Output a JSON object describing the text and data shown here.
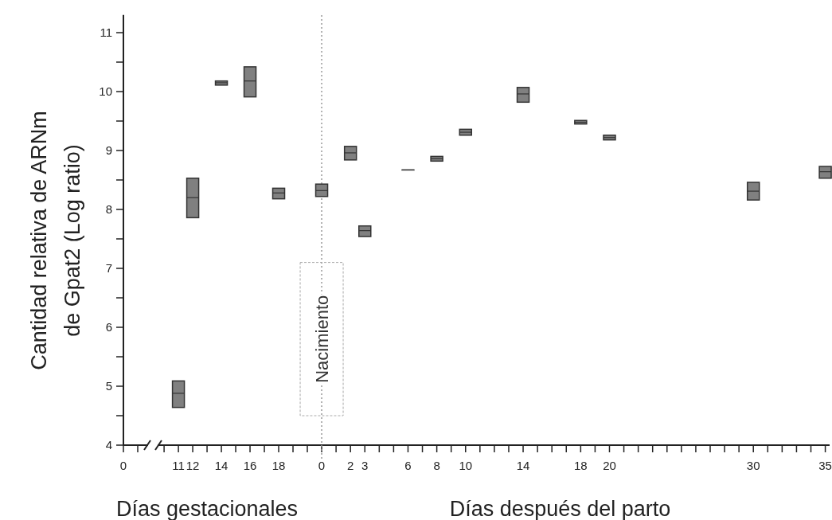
{
  "chart_data": [
    {
      "type": "box",
      "ylabel": "Cantidad relativa de ARNm de Gpat2 (Log ratio)",
      "annotations": [
        "0",
        "Días gestacionales"
      ],
      "color": "#808080",
      "x": [
        11,
        12,
        14,
        16,
        18
      ],
      "boxes": [
        {
          "low": 4.64,
          "q1": 4.64,
          "median": 4.88,
          "q3": 5.09,
          "high": 5.09
        },
        {
          "low": 7.86,
          "q1": 7.86,
          "median": 8.2,
          "q3": 8.53,
          "high": 8.53
        },
        {
          "low": 10.11,
          "q1": 10.11,
          "median": 10.15,
          "q3": 10.18,
          "high": 10.18
        },
        {
          "low": 9.91,
          "q1": 9.91,
          "median": 10.18,
          "q3": 10.42,
          "high": 10.42
        },
        {
          "low": 8.18,
          "q1": 8.18,
          "median": 8.28,
          "q3": 8.36,
          "high": 8.36
        }
      ],
      "xlim": [
        9.55,
        20.5
      ],
      "xticks": [
        {
          "value": 10,
          "label": null
        },
        11,
        12,
        {
          "value": 13,
          "label": null
        },
        14,
        {
          "value": 15,
          "label": null
        },
        16,
        {
          "value": 17,
          "label": null
        },
        18,
        {
          "value": 19,
          "label": null
        },
        {
          "value": 20,
          "label": null
        }
      ],
      "ylim": [
        4,
        11.3
      ],
      "yticks": [
        4,
        5,
        6,
        7,
        8,
        9,
        10,
        11
      ]
    },
    {
      "type": "box",
      "annotations": [
        "Días después del parto"
      ],
      "color": "#808080",
      "tick_labels": "x",
      "x": [
        0,
        2,
        3,
        6,
        8,
        10,
        14,
        18,
        20,
        30,
        35
      ],
      "boxes": [
        {
          "low": 8.22,
          "q1": 8.22,
          "median": 8.32,
          "q3": 8.43,
          "high": 8.43
        },
        {
          "low": 8.84,
          "q1": 8.84,
          "median": 8.96,
          "q3": 9.07,
          "high": 9.07
        },
        {
          "low": 7.54,
          "q1": 7.54,
          "median": 7.64,
          "q3": 7.72,
          "high": 7.72
        },
        {
          "low": 8.67,
          "q1": 8.67,
          "median": 8.67,
          "q3": 8.67,
          "high": 8.67
        },
        {
          "low": 8.82,
          "q1": 8.82,
          "median": 8.86,
          "q3": 8.9,
          "high": 8.9
        },
        {
          "low": 9.26,
          "q1": 9.26,
          "median": 9.31,
          "q3": 9.36,
          "high": 9.36
        },
        {
          "low": 9.82,
          "q1": 9.82,
          "median": 9.96,
          "q3": 10.07,
          "high": 10.07
        },
        {
          "low": 9.45,
          "q1": 9.45,
          "median": 9.48,
          "q3": 9.51,
          "high": 9.51
        },
        {
          "low": 9.18,
          "q1": 9.18,
          "median": 9.22,
          "q3": 9.26,
          "high": 9.26
        },
        {
          "low": 8.16,
          "q1": 8.16,
          "median": 8.31,
          "q3": 8.46,
          "high": 8.46
        },
        {
          "low": 8.53,
          "q1": 8.53,
          "median": 8.64,
          "q3": 8.73,
          "high": 8.73
        }
      ],
      "xlim": [
        -0.5,
        35.3
      ],
      "xticks": [
        0,
        {
          "value": 1,
          "label": null
        },
        2,
        3,
        {
          "value": 4,
          "label": null
        },
        {
          "value": 5,
          "label": null
        },
        6,
        {
          "value": 7,
          "label": null
        },
        8,
        {
          "value": 9,
          "label": null
        },
        10,
        {
          "value": 11,
          "label": null
        },
        {
          "value": 12,
          "label": null
        },
        {
          "value": 13,
          "label": null
        },
        14,
        {
          "value": 15,
          "label": null
        },
        {
          "value": 16,
          "label": null
        },
        {
          "value": 17,
          "label": null
        },
        18,
        {
          "value": 19,
          "label": null
        },
        20,
        {
          "value": 21,
          "label": null
        },
        {
          "value": 22,
          "label": null
        },
        {
          "value": 23,
          "label": null
        },
        {
          "value": 24,
          "label": null
        },
        {
          "value": 25,
          "label": null
        },
        {
          "value": 26,
          "label": null
        },
        {
          "value": 27,
          "label": null
        },
        {
          "value": 28,
          "label": null
        },
        {
          "value": 29,
          "label": null
        },
        30,
        {
          "value": 31,
          "label": null
        },
        {
          "value": 32,
          "label": null
        },
        {
          "value": 33,
          "label": null
        },
        {
          "value": 34,
          "label": null
        },
        35
      ],
      "ylim": [
        4,
        11
      ],
      "yticks": [
        4,
        5,
        6,
        7,
        8,
        9,
        10,
        11
      ],
      "ref_lines": [
        {
          "axis": "x",
          "value": 0,
          "label": "Nacimiento",
          "color": "#999999",
          "line_style": "dotted"
        }
      ]
    }
  ]
}
